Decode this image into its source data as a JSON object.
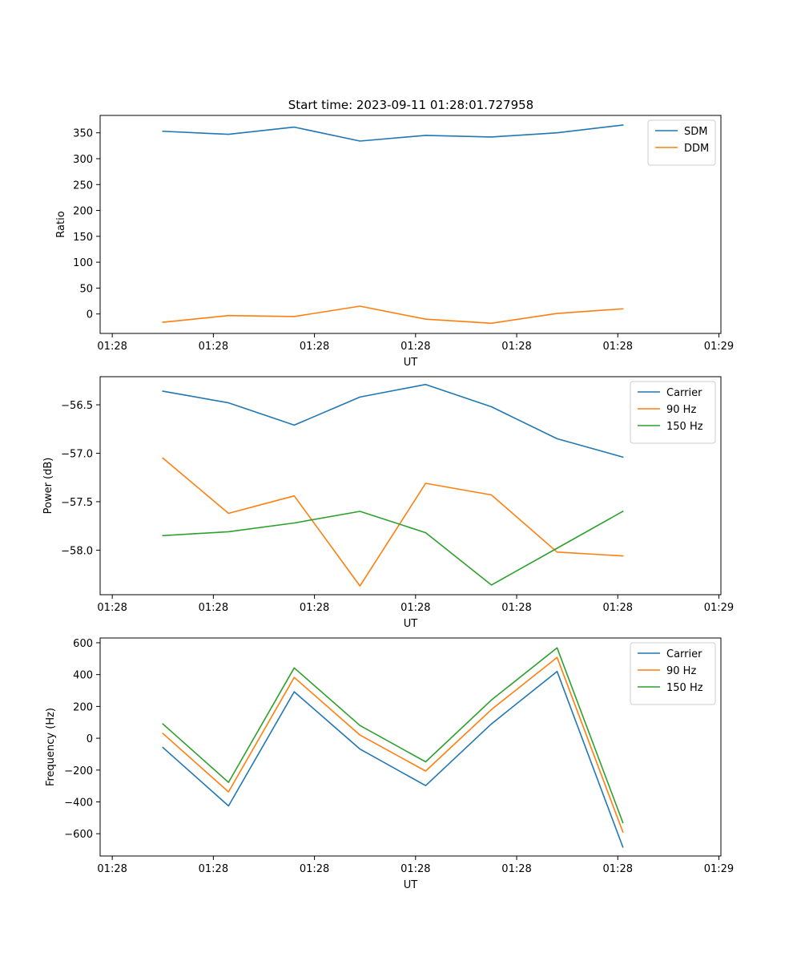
{
  "figure_title": "Start time: 2023-09-11 01:28:01.727958",
  "colors": {
    "blue": "#1f77b4",
    "orange": "#ff7f0e",
    "green": "#2ca02c"
  },
  "chart_data": [
    {
      "id": "ratio",
      "type": "line",
      "xlabel": "UT",
      "ylabel": "Ratio",
      "x_ticks": [
        "01:28",
        "01:28",
        "01:28",
        "01:28",
        "01:28",
        "01:28",
        "01:29"
      ],
      "x_tick_positions": [
        0,
        1,
        2,
        3,
        4,
        5,
        6
      ],
      "x_data": [
        0.5,
        1.15,
        1.8,
        2.45,
        3.1,
        3.75,
        4.4,
        5.05
      ],
      "xlim": [
        -0.12,
        6.02
      ],
      "y_ticks": [
        0,
        50,
        100,
        150,
        200,
        250,
        300,
        350
      ],
      "ylim": [
        -37.6,
        383.6
      ],
      "legend_position": "upper-right",
      "series": [
        {
          "name": "SDM",
          "color": "#1f77b4",
          "values": [
            353,
            347,
            361,
            334,
            345,
            342,
            350,
            365
          ]
        },
        {
          "name": "DDM",
          "color": "#ff7f0e",
          "values": [
            -16,
            -3,
            -5,
            15,
            -10,
            -18,
            1,
            10
          ]
        }
      ]
    },
    {
      "id": "power",
      "type": "line",
      "xlabel": "UT",
      "ylabel": "Power (dB)",
      "x_ticks": [
        "01:28",
        "01:28",
        "01:28",
        "01:28",
        "01:28",
        "01:28",
        "01:29"
      ],
      "x_tick_positions": [
        0,
        1,
        2,
        3,
        4,
        5,
        6
      ],
      "x_data": [
        0.5,
        1.15,
        1.8,
        2.45,
        3.1,
        3.75,
        4.4,
        5.05
      ],
      "xlim": [
        -0.12,
        6.02
      ],
      "y_ticks": [
        -58.0,
        -57.5,
        -57.0,
        -56.5
      ],
      "y_tick_labels": [
        "−58.0",
        "−57.5",
        "−57.0",
        "−56.5"
      ],
      "ylim": [
        -58.46,
        -56.21
      ],
      "legend_position": "upper-right",
      "series": [
        {
          "name": "Carrier",
          "color": "#1f77b4",
          "values": [
            -56.36,
            -56.48,
            -56.71,
            -56.42,
            -56.29,
            -56.52,
            -56.85,
            -57.04
          ]
        },
        {
          "name": "90 Hz",
          "color": "#ff7f0e",
          "values": [
            -57.05,
            -57.62,
            -57.44,
            -58.37,
            -57.31,
            -57.43,
            -58.02,
            -58.06
          ]
        },
        {
          "name": "150 Hz",
          "color": "#2ca02c",
          "values": [
            -57.85,
            -57.81,
            -57.72,
            -57.6,
            -57.82,
            -58.36,
            -57.98,
            -57.6
          ]
        }
      ]
    },
    {
      "id": "frequency",
      "type": "line",
      "xlabel": "UT",
      "ylabel": "Frequency (Hz)",
      "x_ticks": [
        "01:28",
        "01:28",
        "01:28",
        "01:28",
        "01:28",
        "01:28",
        "01:29"
      ],
      "x_tick_positions": [
        0,
        1,
        2,
        3,
        4,
        5,
        6
      ],
      "x_data": [
        0.5,
        1.15,
        1.8,
        2.45,
        3.1,
        3.75,
        4.4,
        5.05
      ],
      "xlim": [
        -0.12,
        6.02
      ],
      "y_ticks": [
        -600,
        -400,
        -200,
        0,
        200,
        400,
        600
      ],
      "y_tick_labels": [
        "−600",
        "−400",
        "−200",
        "0",
        "200",
        "400",
        "600"
      ],
      "ylim": [
        -740,
        630
      ],
      "legend_position": "upper-right",
      "series": [
        {
          "name": "Carrier",
          "color": "#1f77b4",
          "values": [
            -58,
            -425,
            292,
            -68,
            -298,
            90,
            420,
            -684
          ]
        },
        {
          "name": "90 Hz",
          "color": "#ff7f0e",
          "values": [
            30,
            -337,
            382,
            20,
            -206,
            180,
            508,
            -589
          ]
        },
        {
          "name": "150 Hz",
          "color": "#2ca02c",
          "values": [
            90,
            -277,
            442,
            80,
            -148,
            240,
            568,
            -530
          ]
        }
      ]
    }
  ]
}
